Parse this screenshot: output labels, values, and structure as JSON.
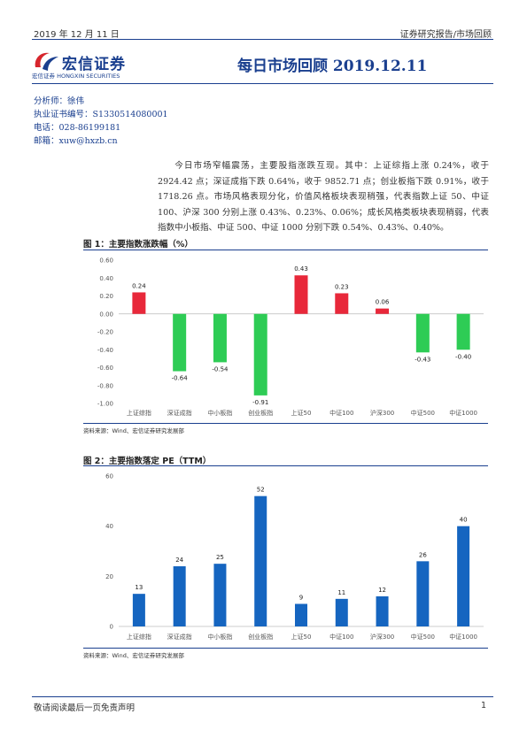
{
  "header": {
    "date": "2019 年 12 月 11 日",
    "category": "证券研究报告/市场回顾",
    "logo_name": "宏信证券",
    "logo_sub": "宏信证券  HONGXIN SECURITIES",
    "title": "每日市场回顾 2019.12.11"
  },
  "analyst": {
    "name": "分析师：徐伟",
    "license": "执业证书编号：S1330514080001",
    "phone": "电话：028-86199181",
    "email": "邮箱：xuw@hxzb.cn"
  },
  "summary": "今日市场窄幅震荡，主要股指涨跌互现。其中：上证综指上涨 0.24%，收于 2924.42 点；深证成指下跌 0.64%，收于 9852.71 点；创业板指下跌 0.91%，收于 1718.26 点。市场风格表现分化，价值风格板块表现稍强，代表指数上证 50、中证 100、沪深 300 分别上涨 0.43%、0.23%、0.06%；成长风格类板块表现稍弱，代表指数中小板指、中证 500、中证 1000 分别下跌 0.54%、0.43%、0.40%。",
  "figures": {
    "fig1_title": "图 1：主要指数涨跌幅（%）",
    "fig2_title": "图 2：主要指数落定 PE（TTM）",
    "source": "资料来源：Wind、宏信证券研究发展部"
  },
  "chart_data": [
    {
      "type": "bar",
      "title": "图 1：主要指数涨跌幅（%）",
      "categories": [
        "上证综指",
        "深证成指",
        "中小板指",
        "创业板指",
        "上证50",
        "中证100",
        "沪深300",
        "中证500",
        "中证1000"
      ],
      "values": [
        0.24,
        -0.64,
        -0.54,
        -0.91,
        0.43,
        0.23,
        0.06,
        -0.43,
        -0.4
      ],
      "ylim": [
        -1.0,
        0.6
      ],
      "yticks": [
        "0.60",
        "0.40",
        "0.20",
        "0.00",
        "-0.20",
        "-0.40",
        "-0.60",
        "-0.80",
        "-1.00"
      ],
      "colors": {
        "positive": "#e8283a",
        "negative": "#2ecc55"
      },
      "grid": false
    },
    {
      "type": "bar",
      "title": "图 2：主要指数落定 PE（TTM）",
      "categories": [
        "上证综指",
        "深证成指",
        "中小板指",
        "创业板指",
        "上证50",
        "中证100",
        "沪深300",
        "中证500",
        "中证1000"
      ],
      "values": [
        13,
        24,
        25,
        52,
        9,
        11,
        12,
        26,
        40
      ],
      "ylim": [
        0,
        60
      ],
      "yticks": [
        "60",
        "40",
        "20",
        "0"
      ],
      "colors": {
        "bar": "#1565c0"
      },
      "grid": false
    }
  ],
  "footer": {
    "disclaimer": "敬请阅读最后一页免责声明",
    "page": "1"
  }
}
